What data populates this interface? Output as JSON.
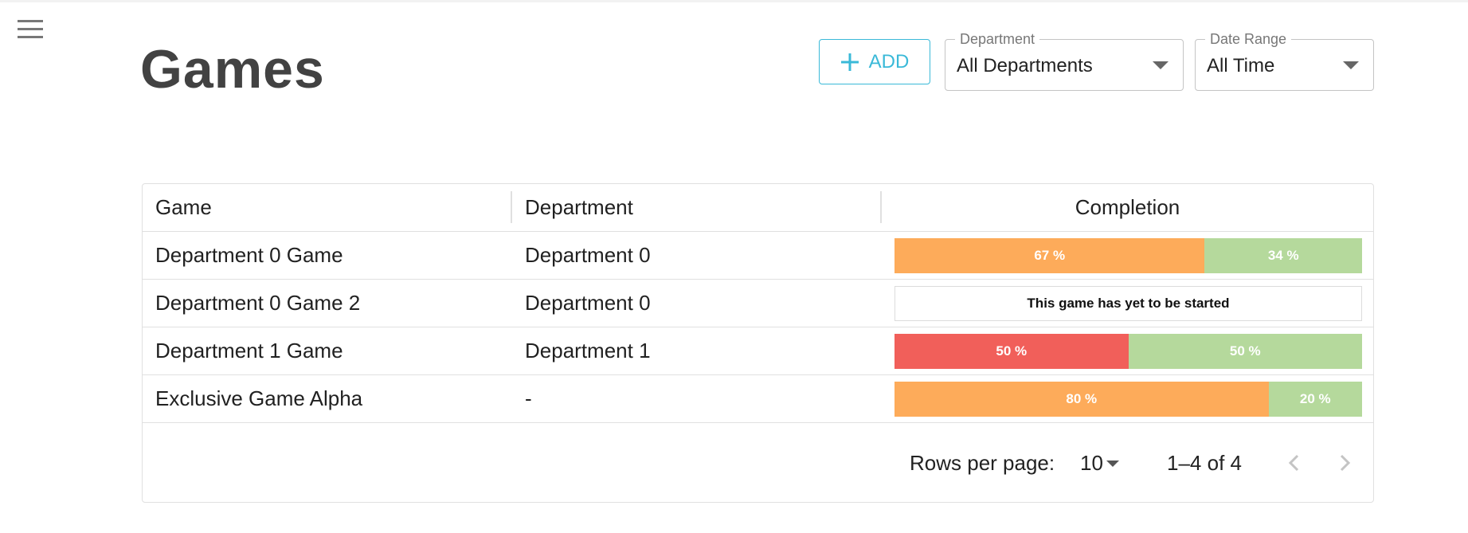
{
  "header": {
    "title": "Games",
    "add_button": "ADD",
    "filters": [
      {
        "label": "Department",
        "value": "All Departments"
      },
      {
        "label": "Date Range",
        "value": "All Time"
      }
    ]
  },
  "table": {
    "columns": [
      "Game",
      "Department",
      "Completion"
    ],
    "rows": [
      {
        "game": "Department 0 Game",
        "department": "Department 0",
        "completion": [
          {
            "value": 67,
            "label": "67 %",
            "color": "#fdab5a"
          },
          {
            "value": 34,
            "label": "34 %",
            "color": "#b5d99c"
          }
        ]
      },
      {
        "game": "Department 0 Game 2",
        "department": "Department 0",
        "status": "This game has yet to be started"
      },
      {
        "game": "Department 1 Game",
        "department": "Department 1",
        "completion": [
          {
            "value": 50,
            "label": "50 %",
            "color": "#f15f5a"
          },
          {
            "value": 50,
            "label": "50 %",
            "color": "#b5d99c"
          }
        ]
      },
      {
        "game": "Exclusive Game Alpha",
        "department": "-",
        "completion": [
          {
            "value": 80,
            "label": "80 %",
            "color": "#fdab5a"
          },
          {
            "value": 20,
            "label": "20 %",
            "color": "#b5d99c"
          }
        ]
      }
    ]
  },
  "pagination": {
    "rows_per_page_label": "Rows per page:",
    "rows_per_page": 10,
    "range": "1–4 of 4"
  }
}
